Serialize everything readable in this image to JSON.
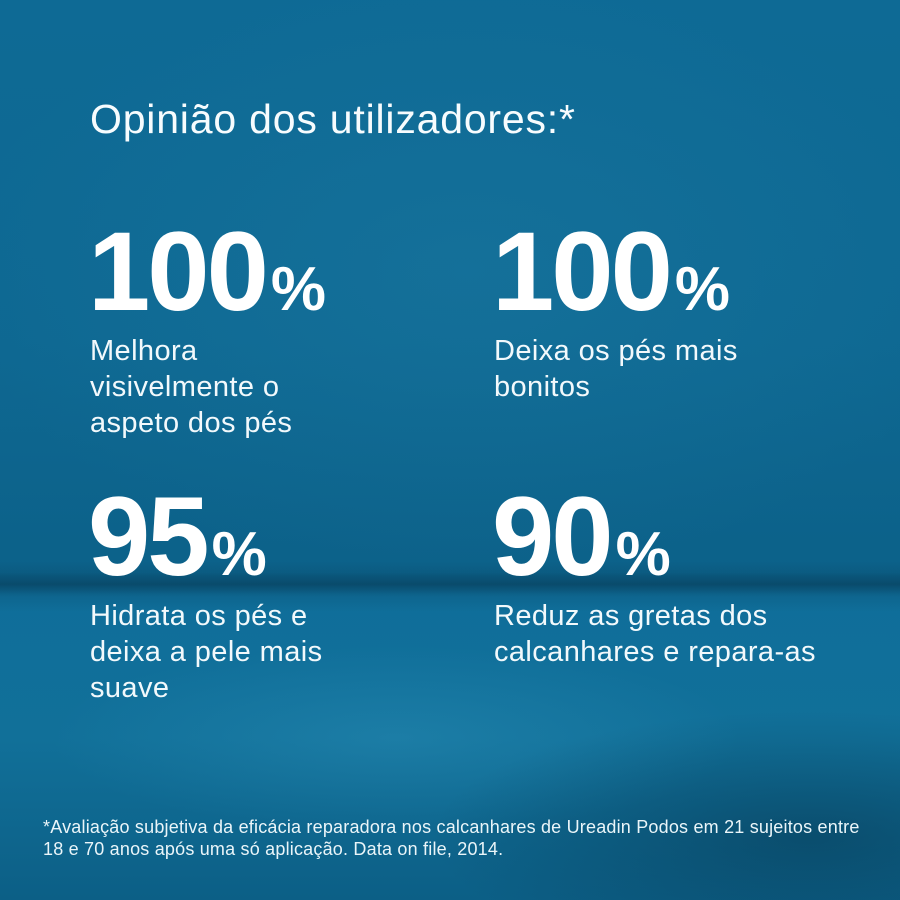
{
  "header": {
    "title": "Opinião dos utilizadores:*"
  },
  "stats": [
    {
      "value": "100",
      "unit": "%",
      "label": "Melhora\nvisivelmente o\naspeto dos pés"
    },
    {
      "value": "100",
      "unit": "%",
      "label": "Deixa os pés mais\nbonitos"
    },
    {
      "value": "95",
      "unit": "%",
      "label": "Hidrata os pés e\ndeixa a pele mais\nsuave"
    },
    {
      "value": "90",
      "unit": "%",
      "label": "Reduz as gretas dos\ncalcanhares e repara-as"
    }
  ],
  "footer": {
    "note": "*Avaliação subjetiva da eficácia reparadora nos calcanhares de Ureadin Podos em 21 sujeitos entre\n18 e 70 anos após uma só aplicação. Data on file, 2014."
  },
  "colors": {
    "background_wall": "#0e6892",
    "background_floor": "#0f6e9a",
    "seam_shadow": "#04283e",
    "text_white": "#ffffff"
  }
}
